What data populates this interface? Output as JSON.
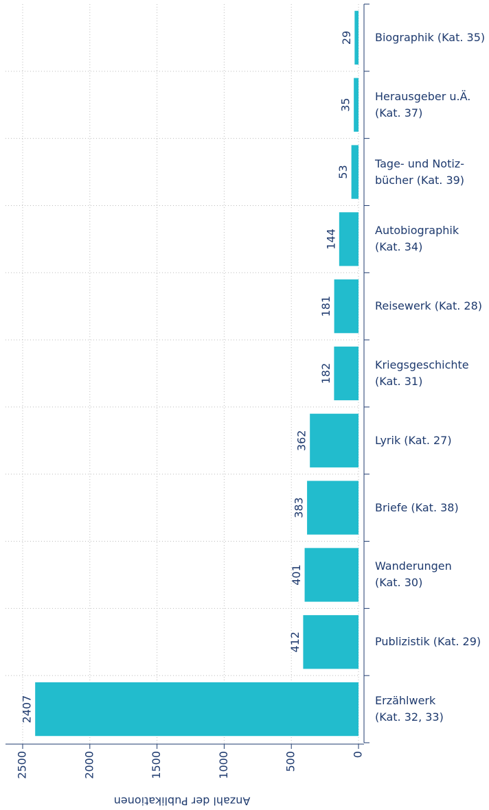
{
  "chart_data": {
    "type": "bar",
    "orientation": "horizontal",
    "x_label": "Anzahl der Publikationen",
    "categories": [
      "Biographik (Kat. 35)",
      "Herausgeber u.Ä.\n(Kat. 37)",
      "Tage- und Notiz-\nbücher (Kat. 39)",
      "Autobiographik\n(Kat. 34)",
      "Reisewerk (Kat. 28)",
      "Kriegsgeschichte\n(Kat. 31)",
      "Lyrik (Kat. 27)",
      "Briefe (Kat. 38)",
      "Wanderungen\n(Kat. 30)",
      "Publizistik (Kat. 29)",
      "Erzählwerk\n(Kat. 32, 33)"
    ],
    "values": [
      29,
      35,
      53,
      144,
      181,
      182,
      362,
      383,
      401,
      412,
      2407
    ],
    "color": "#22bccd",
    "xlim": [
      0,
      2500
    ],
    "xticks": [
      0,
      500,
      1000,
      1500,
      2000,
      2500
    ],
    "grid": true
  }
}
